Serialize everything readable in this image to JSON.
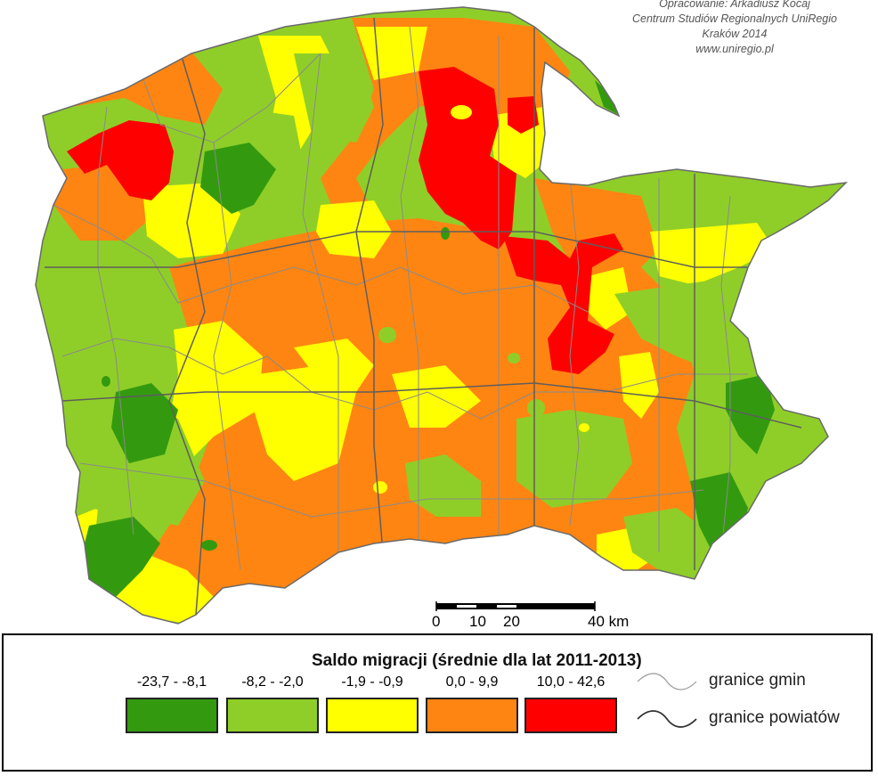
{
  "credit": {
    "line1": "Opracowanie: Arkadiusz Kocaj",
    "line2": "Centrum Studiów Regionalnych UniRegio",
    "line3": "Kraków 2014",
    "line4": "www.uniregio.pl"
  },
  "scalebar": {
    "ticks": [
      "0",
      "10",
      "20",
      "40 km"
    ]
  },
  "legend": {
    "title": "Saldo migracji (średnie dla lat 2011-2013)",
    "classes": [
      {
        "label": "-23,7 - -8,1",
        "color": "#339a0f"
      },
      {
        "label": "-8,2 - -2,0",
        "color": "#8fce28"
      },
      {
        "label": "-1,9 - -0,9",
        "color": "#ffff00"
      },
      {
        "label": "0,0 - 9,9",
        "color": "#ff8512"
      },
      {
        "label": "10,0 - 42,6",
        "color": "#ff0000"
      }
    ],
    "lines": [
      {
        "label": "granice gmin"
      },
      {
        "label": "granice powiatów"
      }
    ]
  },
  "colors": {
    "boundary": "#7a7a7a",
    "background": "#ffffff"
  }
}
